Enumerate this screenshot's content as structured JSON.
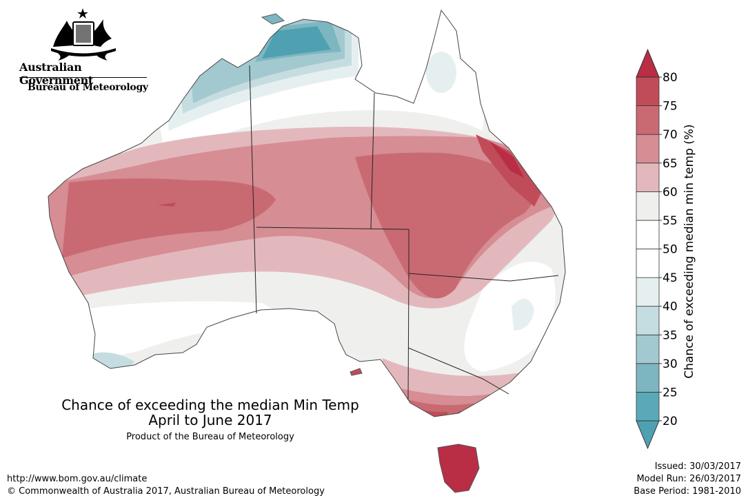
{
  "header": {
    "gov_name": "Australian Government",
    "bureau_name": "Bureau of Meteorology"
  },
  "title": {
    "line1": "Chance of exceeding the median Min Temp",
    "line2": "April to June 2017",
    "product": "Product of the Bureau of Meteorology"
  },
  "footer": {
    "url": "http://www.bom.gov.au/climate",
    "copyright": "© Commonwealth of Australia 2017, Australian Bureau of Meteorology",
    "issued": "Issued: 30/03/2017",
    "model_run": "Model Run: 26/03/2017",
    "base_period": "Base Period: 1981-2010"
  },
  "legend": {
    "title": "Chance of exceeding median min temp (%)",
    "ticks": [
      "20",
      "25",
      "30",
      "35",
      "40",
      "45",
      "50",
      "55",
      "60",
      "65",
      "70",
      "75",
      "80"
    ],
    "colors": [
      "#5aa9b8",
      "#7db6c1",
      "#a2c9cf",
      "#c5dde0",
      "#e6eff0",
      "#ffffff",
      "#ffffff",
      "#efefee",
      "#e3b8bc",
      "#d68d94",
      "#c96a73",
      "#c04c59"
    ],
    "under_color": "#4fa1b1",
    "over_color": "#b92d45"
  },
  "map": {
    "colors": {
      "p80": "#b92d45",
      "p75": "#c04c59",
      "p70": "#c96a73",
      "p65": "#d68d94",
      "p60": "#e3b8bc",
      "p55": "#efefee",
      "p50": "#ffffff",
      "p40": "#e6eff0",
      "p35": "#c5dde0",
      "p30": "#a2c9cf",
      "p25": "#7db6c1",
      "p20": "#4fa1b1"
    }
  }
}
